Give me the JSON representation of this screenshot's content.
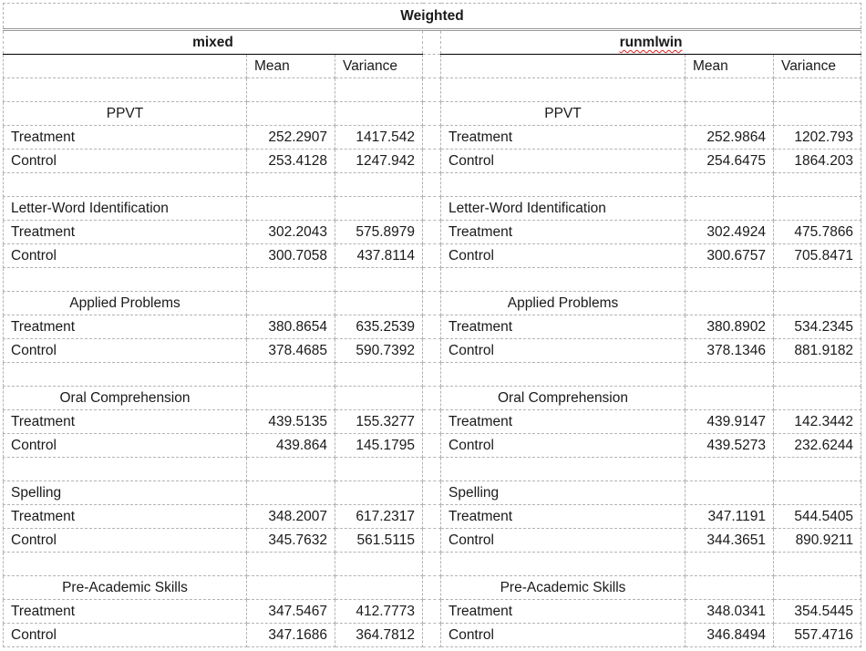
{
  "title": "Weighted",
  "groups": [
    {
      "name": "mixed",
      "spellcheck_flag": false
    },
    {
      "name": "runmlwin",
      "spellcheck_flag": true
    }
  ],
  "columns": [
    "Mean",
    "Variance"
  ],
  "sections": [
    {
      "name": "PPVT",
      "mixed": [
        [
          "Treatment",
          "252.2907",
          "1417.542"
        ],
        [
          "Control",
          "253.4128",
          "1247.942"
        ]
      ],
      "runmlwin": [
        [
          "Treatment",
          "252.9864",
          "1202.793"
        ],
        [
          "Control",
          "254.6475",
          "1864.203"
        ]
      ]
    },
    {
      "name": "Letter-Word Identification",
      "mixed": [
        [
          "Treatment",
          "302.2043",
          "575.8979"
        ],
        [
          "Control",
          "300.7058",
          "437.8114"
        ]
      ],
      "runmlwin": [
        [
          "Treatment",
          "302.4924",
          "475.7866"
        ],
        [
          "Control",
          "300.6757",
          "705.8471"
        ]
      ]
    },
    {
      "name": "Applied Problems",
      "mixed": [
        [
          "Treatment",
          "380.8654",
          "635.2539"
        ],
        [
          "Control",
          "378.4685",
          "590.7392"
        ]
      ],
      "runmlwin": [
        [
          "Treatment",
          "380.8902",
          "534.2345"
        ],
        [
          "Control",
          "378.1346",
          "881.9182"
        ]
      ]
    },
    {
      "name": "Oral Comprehension",
      "mixed": [
        [
          "Treatment",
          "439.5135",
          "155.3277"
        ],
        [
          "Control",
          "439.864",
          "145.1795"
        ]
      ],
      "runmlwin": [
        [
          "Treatment",
          "439.9147",
          "142.3442"
        ],
        [
          "Control",
          "439.5273",
          "232.6244"
        ]
      ]
    },
    {
      "name": "Spelling",
      "mixed": [
        [
          "Treatment",
          "348.2007",
          "617.2317"
        ],
        [
          "Control",
          "345.7632",
          "561.5115"
        ]
      ],
      "runmlwin": [
        [
          "Treatment",
          "347.1191",
          "544.5405"
        ],
        [
          "Control",
          "344.3651",
          "890.9211"
        ]
      ]
    },
    {
      "name": "Pre-Academic Skills",
      "mixed": [
        [
          "Treatment",
          "347.5467",
          "412.7773"
        ],
        [
          "Control",
          "347.1686",
          "364.7812"
        ]
      ],
      "runmlwin": [
        [
          "Treatment",
          "348.0341",
          "354.5445"
        ],
        [
          "Control",
          "346.8494",
          "557.4716"
        ]
      ]
    }
  ]
}
